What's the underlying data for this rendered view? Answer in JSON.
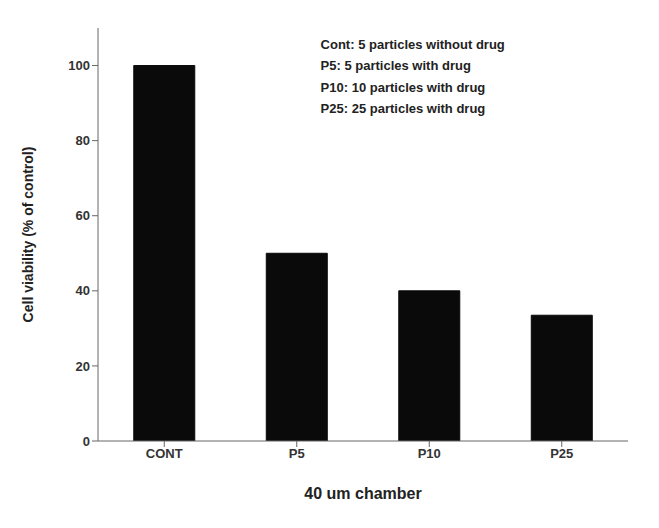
{
  "chart_data": {
    "type": "bar",
    "categories": [
      "CONT",
      "P5",
      "P10",
      "P25"
    ],
    "values": [
      100,
      50,
      40,
      33.5
    ],
    "color": "#0a0a0a",
    "xlabel": "40 um chamber",
    "ylabel": "Cell viability (% of control)",
    "ylim": [
      0,
      110
    ],
    "yticks": [
      0,
      20,
      40,
      60,
      80,
      100
    ],
    "grid": false,
    "annotations": [
      "Cont: 5 particles without drug",
      "P5: 5 particles with drug",
      "P10: 10 particles with drug",
      "P25: 25 particles with drug"
    ]
  }
}
